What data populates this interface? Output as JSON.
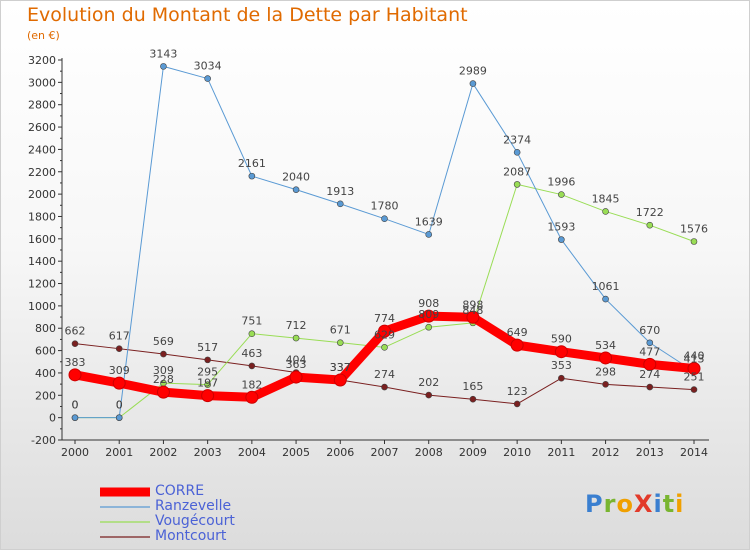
{
  "header": {
    "title": "Evolution du Montant de la Dette par Habitant",
    "unit": "(en €)"
  },
  "logo": {
    "text": "ProXiti"
  },
  "chart_data": {
    "type": "line",
    "title": "Evolution du Montant de la Dette par Habitant",
    "ylabel": "(en €)",
    "xlabel": "",
    "ylim": [
      -200,
      3200
    ],
    "ytick_step": 200,
    "grid": false,
    "legend_position": "bottom-left",
    "x": [
      "2000",
      "2001",
      "2002",
      "2003",
      "2004",
      "2005",
      "2006",
      "2007",
      "2008",
      "2009",
      "2010",
      "2011",
      "2012",
      "2013",
      "2014"
    ],
    "series": [
      {
        "name": "Montcourt",
        "color": "#7a2020",
        "line_width": 1,
        "values": [
          662,
          617,
          569,
          517,
          463,
          404,
          337,
          274,
          202,
          165,
          123,
          353,
          298,
          274,
          251
        ]
      },
      {
        "name": "Vougécourt",
        "color": "#99dd55",
        "line_width": 1,
        "values": [
          0,
          0,
          309,
          295,
          751,
          712,
          671,
          629,
          809,
          848,
          2087,
          1996,
          1845,
          1722,
          1576
        ]
      },
      {
        "name": "Ranzevelle",
        "color": "#5a9ad4",
        "line_width": 1,
        "values": [
          0,
          0,
          3143,
          3034,
          2161,
          2040,
          1913,
          1780,
          1639,
          2989,
          2374,
          1593,
          1061,
          670,
          413
        ]
      },
      {
        "name": "CORRE",
        "color": "#ff0000",
        "line_width": 9,
        "values": [
          383,
          309,
          228,
          197,
          182,
          363,
          337,
          774,
          908,
          898,
          649,
          590,
          534,
          477,
          440
        ]
      }
    ]
  }
}
